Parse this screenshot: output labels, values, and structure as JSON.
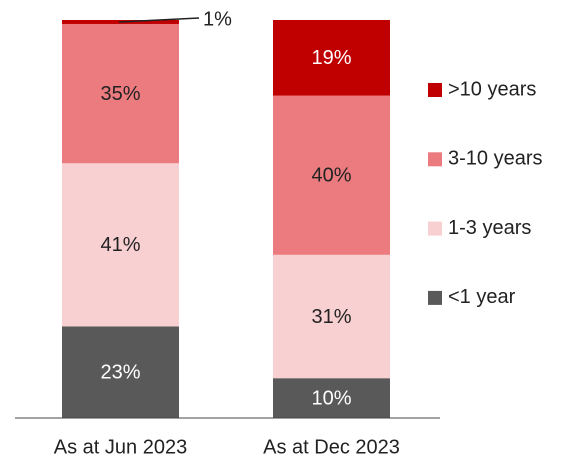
{
  "chart_data": {
    "type": "stacked_bar",
    "categories": [
      "As at Jun 2023",
      "As at Dec 2023"
    ],
    "series": [
      {
        "name": "<1 year",
        "color": "#595959",
        "values": [
          23,
          10
        ],
        "value_labels": [
          "23%",
          "10%"
        ]
      },
      {
        "name": "1-3 years",
        "color": "#f8d0d2",
        "values": [
          41,
          31
        ],
        "value_labels": [
          "41%",
          "31%"
        ]
      },
      {
        "name": "3-10 years",
        "color": "#ec7b7f",
        "values": [
          35,
          40
        ],
        "value_labels": [
          "35%",
          "40%"
        ]
      },
      {
        "name": ">10 years",
        "color": "#c00000",
        "values": [
          1,
          19
        ],
        "value_labels": [
          "1%",
          "19%"
        ]
      }
    ],
    "legend": "right"
  }
}
